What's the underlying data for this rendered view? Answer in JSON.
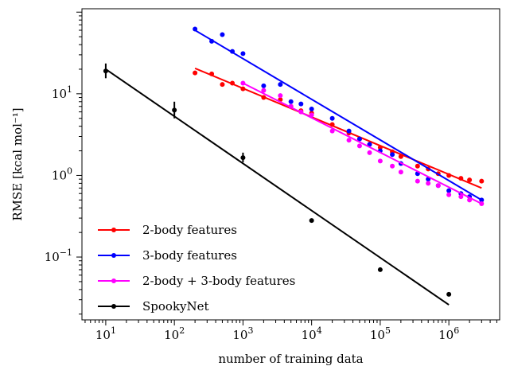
{
  "chart_data": {
    "type": "scatter",
    "xlabel": "number of training data",
    "ylabel": "RMSE [kcal mol⁻¹]",
    "x_scale": "log",
    "y_scale": "log",
    "xlim": [
      4.5,
      5500000
    ],
    "ylim": [
      0.017,
      110
    ],
    "x_ticks": [
      {
        "value": 10,
        "base": "10",
        "exp": "1"
      },
      {
        "value": 100,
        "base": "10",
        "exp": "2"
      },
      {
        "value": 1000,
        "base": "10",
        "exp": "3"
      },
      {
        "value": 10000,
        "base": "10",
        "exp": "4"
      },
      {
        "value": 100000,
        "base": "10",
        "exp": "5"
      },
      {
        "value": 1000000,
        "base": "10",
        "exp": "6"
      }
    ],
    "y_ticks": [
      {
        "value": 0.1,
        "base": "10",
        "exp": "−1"
      },
      {
        "value": 1,
        "base": "10",
        "exp": "0"
      },
      {
        "value": 10,
        "base": "10",
        "exp": "1"
      }
    ],
    "legend_position": "lower-left",
    "grid": false,
    "series": [
      {
        "name": "2-body features",
        "color": "#ff0000",
        "x": [
          200,
          350,
          500,
          700,
          1000,
          2000,
          3500,
          5000,
          7000,
          10000,
          20000,
          35000,
          50000,
          70000,
          100000,
          150000,
          200000,
          350000,
          500000,
          700000,
          1000000,
          1500000,
          2000000,
          3000000
        ],
        "y": [
          18,
          17.5,
          13,
          13.5,
          11.5,
          9,
          8.5,
          7,
          6.2,
          5.8,
          4.2,
          3.3,
          2.8,
          2.4,
          2.2,
          1.95,
          1.7,
          1.3,
          1.2,
          1.05,
          1.0,
          0.92,
          0.88,
          0.85
        ],
        "fit": {
          "x": [
            200,
            3000000
          ],
          "y": [
            20.5,
            0.7
          ]
        }
      },
      {
        "name": "3-body features",
        "color": "#0000ff",
        "x": [
          200,
          350,
          500,
          700,
          1000,
          2000,
          3500,
          5000,
          7000,
          10000,
          20000,
          35000,
          50000,
          70000,
          100000,
          150000,
          200000,
          350000,
          500000,
          700000,
          1000000,
          1500000,
          2000000,
          3000000
        ],
        "y": [
          62,
          44,
          53,
          33,
          31,
          12.5,
          13,
          8,
          7.5,
          6.5,
          5,
          3.5,
          2.8,
          2.4,
          2.0,
          1.8,
          1.4,
          1.05,
          0.9,
          0.75,
          0.65,
          0.6,
          0.55,
          0.5
        ],
        "fit": {
          "x": [
            200,
            3000000
          ],
          "y": [
            60,
            0.5
          ]
        }
      },
      {
        "name": "2-body + 3-body features",
        "color": "#ff00ff",
        "x": [
          1000,
          2000,
          3500,
          5000,
          7000,
          10000,
          20000,
          35000,
          50000,
          70000,
          100000,
          150000,
          200000,
          350000,
          500000,
          700000,
          1000000,
          1500000,
          2000000,
          3000000
        ],
        "y": [
          13.5,
          11,
          9.5,
          7,
          6,
          5.5,
          3.5,
          2.7,
          2.3,
          1.9,
          1.5,
          1.3,
          1.1,
          0.85,
          0.8,
          0.75,
          0.58,
          0.55,
          0.5,
          0.45
        ],
        "fit": {
          "x": [
            1000,
            3000000
          ],
          "y": [
            13.5,
            0.45
          ]
        }
      },
      {
        "name": "SpookyNet",
        "color": "#000000",
        "x": [
          10,
          100,
          1000,
          10000,
          100000,
          1000000
        ],
        "y": [
          19,
          6.3,
          1.65,
          0.28,
          0.07,
          0.035
        ],
        "err_low": [
          15.5,
          5.0,
          1.45,
          0.275,
          0.069,
          0.033
        ],
        "err_high": [
          23.5,
          8.0,
          1.9,
          0.285,
          0.071,
          0.037
        ],
        "fit": {
          "x": [
            10,
            1000000
          ],
          "y": [
            20,
            0.026
          ]
        }
      }
    ]
  }
}
